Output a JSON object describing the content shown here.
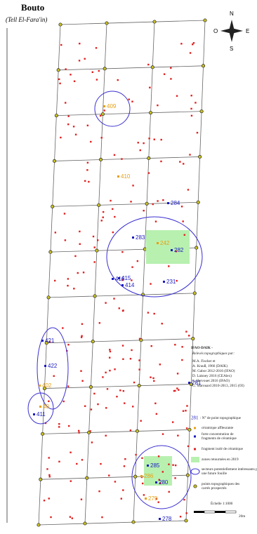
{
  "header": {
    "title": "Bouto",
    "subtitle": "(Tell El-Fara'in)"
  },
  "compass": {
    "n": "N",
    "s": "S",
    "e": "E",
    "w": "O"
  },
  "points": [
    "409",
    "410",
    "284",
    "283",
    "242",
    "282",
    "416",
    "415",
    "414",
    "231",
    "421",
    "422",
    "402",
    "281",
    "40",
    "411",
    "285",
    "286",
    "280",
    "279",
    "278"
  ],
  "credits": {
    "title": "IFAO-DAIK -",
    "subtitle": "Relevés topographiques par:",
    "lines": [
      "M.A. Fischer et",
      "A. Krauß, 1966 (DAIK)",
      "M. Gabor 2012-2016 (IFAO)",
      "D. Laisney 2016 (CEAlex)",
      "S. Hervouet 2016 (IFAO)",
      "G. Marouard 2010-2013, 2015 (OI)"
    ]
  },
  "legend": {
    "point_number": "281",
    "point_text": ": N° de point topographique",
    "items": [
      "céramique affleurante",
      "forte concentration de fragments de céramique",
      "fragment isolé de céramique",
      "zones retournées en 2019",
      "secteurs potentiellement intéressants pour une future fouille",
      "points topographiques des carrés prospectés"
    ]
  },
  "scale": {
    "label": "Échelle 1:1000",
    "end": "20m"
  }
}
